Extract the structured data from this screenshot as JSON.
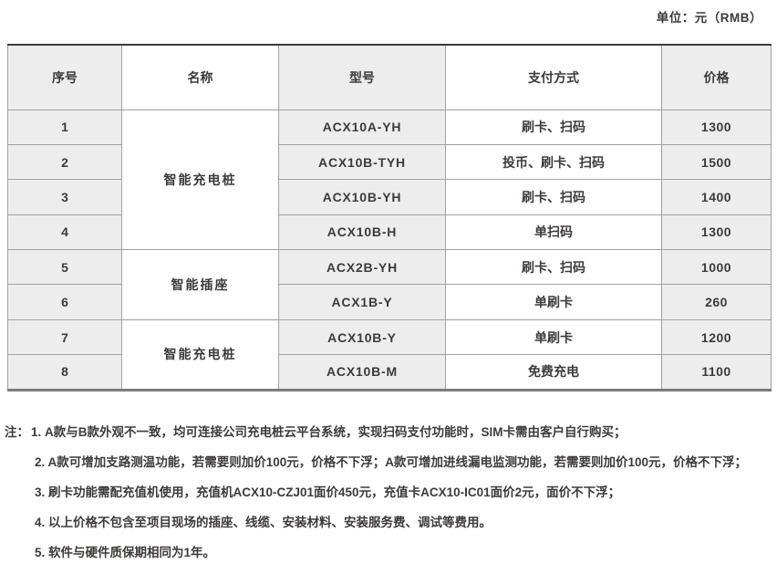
{
  "unit_label": "单位：元（RMB）",
  "table": {
    "headers": [
      "序号",
      "名称",
      "型号",
      "支付方式",
      "价格"
    ],
    "groups": [
      {
        "name": "智能充电桩",
        "span": 4
      },
      {
        "name": "智能插座",
        "span": 2
      },
      {
        "name": "智能充电桩",
        "span": 2
      }
    ],
    "rows": [
      {
        "no": "1",
        "model": "ACX10A-YH",
        "payment": "刷卡、扫码",
        "price": "1300"
      },
      {
        "no": "2",
        "model": "ACX10B-TYH",
        "payment": "投币、刷卡、扫码",
        "price": "1500"
      },
      {
        "no": "3",
        "model": "ACX10B-YH",
        "payment": "刷卡、扫码",
        "price": "1400"
      },
      {
        "no": "4",
        "model": "ACX10B-H",
        "payment": "单扫码",
        "price": "1300"
      },
      {
        "no": "5",
        "model": "ACX2B-YH",
        "payment": "刷卡、扫码",
        "price": "1000"
      },
      {
        "no": "6",
        "model": "ACX1B-Y",
        "payment": "单刷卡",
        "price": "260"
      },
      {
        "no": "7",
        "model": "ACX10B-Y",
        "payment": "单刷卡",
        "price": "1200"
      },
      {
        "no": "8",
        "model": "ACX10B-M",
        "payment": "免费充电",
        "price": "1100"
      }
    ]
  },
  "notes": {
    "prefix": "注：",
    "items": [
      "1. A款与B款外观不一致，均可连接公司充电桩云平台系统，实现扫码支付功能时，SIM卡需由客户自行购买；",
      "2. A款可增加支路测温功能，若需要则加价100元，价格不下浮；A款可增加进线漏电监测功能，若需要则加价100元，价格不下浮；",
      "3. 刷卡功能需配充值机使用，充值机ACX10-CZJ01面价450元，充值卡ACX10-IC01面价2元，面价不下浮；",
      "4. 以上价格不包含至项目现场的插座、线缆、安装材料、安装服务费、调试等费用。",
      "5. 软件与硬件质保期相同为1年。"
    ]
  },
  "colors": {
    "shaded_column_bg": "#ededee",
    "white_column_bg": "#ffffff",
    "grid_line": "#a0a0a0",
    "top_border": "#3e3a39",
    "bottom_border": "#7d7b7b",
    "text": "#3e3a39"
  }
}
